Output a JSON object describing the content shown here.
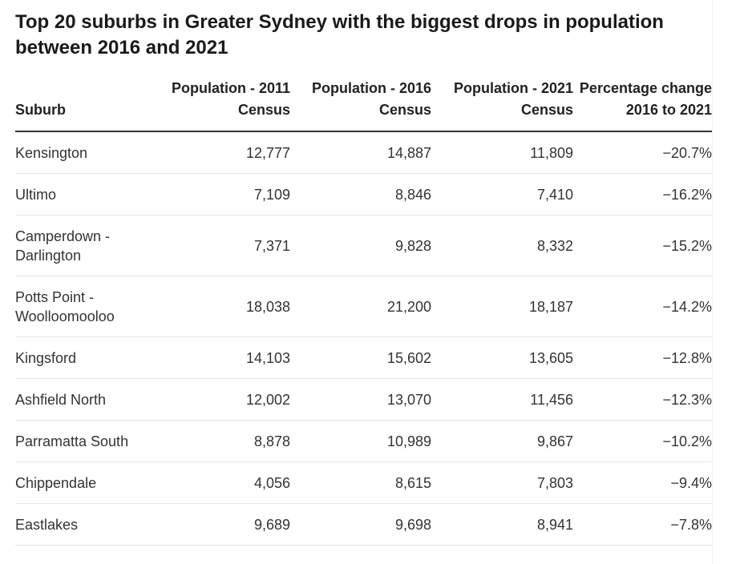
{
  "chart_data": {
    "type": "table",
    "title": "Top 20 suburbs in Greater Sydney with the biggest drops in population between 2016 and 2021",
    "columns": [
      "Suburb",
      "Population - 2011 Census",
      "Population - 2016 Census",
      "Population - 2021 Census",
      "Percentage change 2016 to 2021"
    ],
    "rows": [
      {
        "cells": [
          "Kensington",
          "12,777",
          "14,887",
          "11,809",
          "−20.7%"
        ],
        "lines": 1
      },
      {
        "cells": [
          "Ultimo",
          "7,109",
          "8,846",
          "7,410",
          "−16.2%"
        ],
        "lines": 1
      },
      {
        "cells": [
          "Camperdown - Darlington",
          "7,371",
          "9,828",
          "8,332",
          "−15.2%"
        ],
        "lines": 2
      },
      {
        "cells": [
          "Potts Point - Woolloomooloo",
          "18,038",
          "21,200",
          "18,187",
          "−14.2%"
        ],
        "lines": 2
      },
      {
        "cells": [
          "Kingsford",
          "14,103",
          "15,602",
          "13,605",
          "−12.8%"
        ],
        "lines": 1
      },
      {
        "cells": [
          "Ashfield North",
          "12,002",
          "13,070",
          "11,456",
          "−12.3%"
        ],
        "lines": 1
      },
      {
        "cells": [
          "Parramatta South",
          "8,878",
          "10,989",
          "9,867",
          "−10.2%"
        ],
        "lines": 1
      },
      {
        "cells": [
          "Chippendale",
          "4,056",
          "8,615",
          "7,803",
          "−9.4%"
        ],
        "lines": 1
      },
      {
        "cells": [
          "Eastlakes",
          "9,689",
          "9,698",
          "8,941",
          "−7.8%"
        ],
        "lines": 1
      }
    ]
  }
}
